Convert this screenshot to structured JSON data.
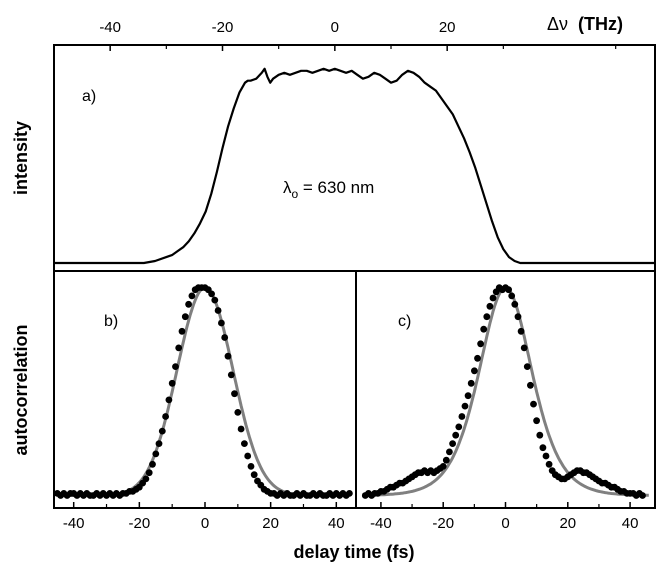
{
  "chart_data": [
    {
      "panel": "a)",
      "type": "line",
      "ylabel": "intensity",
      "x2label_symbol": "Δν",
      "x2label_unit": "(THz)",
      "x2_ticks": [
        "-40",
        "-20",
        "0",
        "20"
      ],
      "x2lim": [
        -50,
        57
      ],
      "annotation": {
        "prefix": "λ",
        "subscript": "o",
        "suffix": " = 630 nm"
      },
      "ylim": [
        0,
        1.08
      ],
      "x": [
        -50,
        -34,
        -32,
        -30,
        -29,
        -28,
        -27,
        -26,
        -25,
        -24,
        -23,
        -22,
        -21,
        -20,
        -19,
        -18,
        -17,
        -16,
        -15.5,
        -15,
        -14,
        -13,
        -12.5,
        -12,
        -11.5,
        -11,
        -10,
        -9,
        -8,
        -7,
        -6,
        -5,
        -4,
        -3,
        -2,
        -1,
        0,
        1,
        2,
        3,
        4,
        5,
        6,
        7,
        8,
        9,
        10,
        11,
        12,
        13,
        14,
        15,
        16,
        17,
        18,
        19,
        20,
        21,
        22,
        23,
        24,
        25,
        26,
        27,
        28,
        29,
        30,
        31,
        32,
        33,
        35,
        38,
        57
      ],
      "y": [
        0.01,
        0.01,
        0.02,
        0.04,
        0.05,
        0.07,
        0.09,
        0.12,
        0.16,
        0.21,
        0.27,
        0.36,
        0.47,
        0.59,
        0.7,
        0.79,
        0.87,
        0.92,
        0.93,
        0.93,
        0.94,
        0.97,
        0.99,
        0.95,
        0.92,
        0.94,
        0.96,
        0.97,
        0.96,
        0.97,
        0.98,
        0.98,
        0.97,
        0.98,
        0.99,
        0.98,
        0.99,
        0.98,
        0.97,
        0.98,
        0.96,
        0.94,
        0.95,
        0.97,
        0.96,
        0.94,
        0.92,
        0.93,
        0.96,
        0.98,
        0.97,
        0.95,
        0.92,
        0.9,
        0.88,
        0.84,
        0.8,
        0.76,
        0.7,
        0.64,
        0.57,
        0.49,
        0.4,
        0.31,
        0.22,
        0.14,
        0.08,
        0.04,
        0.02,
        0.01,
        0.01,
        0.01,
        0.01
      ]
    },
    {
      "panel": "b)",
      "type": "scatter",
      "ylabel": "autocorrelation",
      "xlim": [
        -46,
        46
      ],
      "xticks": [
        -40,
        -20,
        0,
        20,
        40
      ],
      "ylim": [
        -0.06,
        1.08
      ],
      "points": {
        "x": [
          -45,
          -44,
          -43,
          -42,
          -41,
          -40,
          -39,
          -38,
          -37,
          -36,
          -35,
          -34,
          -33,
          -32,
          -31,
          -30,
          -29,
          -28,
          -27,
          -26,
          -25,
          -24,
          -23,
          -22,
          -21,
          -20,
          -19,
          -18,
          -17,
          -16,
          -15,
          -14,
          -13,
          -12,
          -11,
          -10,
          -9,
          -8,
          -7,
          -6,
          -5,
          -4,
          -3,
          -2,
          -1,
          0,
          1,
          2,
          3,
          4,
          5,
          6,
          7,
          8,
          9,
          10,
          11,
          12,
          13,
          14,
          15,
          16,
          17,
          18,
          19,
          20,
          21,
          22,
          23,
          24,
          25,
          26,
          27,
          28,
          29,
          30,
          31,
          32,
          33,
          34,
          35,
          36,
          37,
          38,
          39,
          40,
          41,
          42,
          43,
          44
        ],
        "y": [
          0.01,
          0.0,
          0.01,
          0.0,
          0.01,
          0.01,
          0.0,
          0.01,
          0.0,
          0.01,
          0.0,
          0.0,
          0.01,
          0.0,
          0.01,
          0.0,
          0.01,
          0.0,
          0.01,
          0.0,
          0.01,
          0.01,
          0.02,
          0.02,
          0.03,
          0.04,
          0.06,
          0.08,
          0.11,
          0.15,
          0.2,
          0.25,
          0.31,
          0.38,
          0.46,
          0.54,
          0.62,
          0.71,
          0.79,
          0.86,
          0.92,
          0.96,
          0.99,
          1.0,
          1.0,
          1.0,
          0.99,
          0.97,
          0.94,
          0.89,
          0.83,
          0.76,
          0.67,
          0.58,
          0.49,
          0.4,
          0.32,
          0.25,
          0.19,
          0.14,
          0.1,
          0.07,
          0.05,
          0.03,
          0.02,
          0.01,
          0.01,
          0.0,
          0.01,
          0.0,
          0.01,
          0.0,
          0.0,
          0.01,
          0.0,
          0.01,
          0.0,
          0.0,
          0.01,
          0.0,
          0.01,
          0.0,
          0.0,
          0.01,
          0.0,
          0.01,
          0.0,
          0.01,
          0.0,
          0.01
        ]
      },
      "fit": {
        "type": "gaussian",
        "center": 0,
        "fwhm": 20,
        "amplitude": 1.0,
        "baseline": 0.0
      }
    },
    {
      "panel": "c)",
      "type": "scatter",
      "xlabel": "delay time (fs)",
      "xlim": [
        -48,
        48
      ],
      "xticks": [
        -40,
        -20,
        0,
        20,
        40
      ],
      "ylim": [
        -0.06,
        1.08
      ],
      "points": {
        "x": [
          -45,
          -44,
          -43,
          -42,
          -41,
          -40,
          -39,
          -38,
          -37,
          -36,
          -35,
          -34,
          -33,
          -32,
          -31,
          -30,
          -29,
          -28,
          -27,
          -26,
          -25,
          -24,
          -23,
          -22,
          -21,
          -20,
          -19,
          -18,
          -17,
          -16,
          -15,
          -14,
          -13,
          -12,
          -11,
          -10,
          -9,
          -8,
          -7,
          -6,
          -5,
          -4,
          -3,
          -2,
          -1,
          0,
          1,
          2,
          3,
          4,
          5,
          6,
          7,
          8,
          9,
          10,
          11,
          12,
          13,
          14,
          15,
          16,
          17,
          18,
          19,
          20,
          21,
          22,
          23,
          24,
          25,
          26,
          27,
          28,
          29,
          30,
          31,
          32,
          33,
          34,
          35,
          36,
          37,
          38,
          39,
          40,
          41,
          42,
          43,
          44
        ],
        "y": [
          0.0,
          0.01,
          0.0,
          0.01,
          0.01,
          0.02,
          0.02,
          0.03,
          0.04,
          0.04,
          0.05,
          0.06,
          0.06,
          0.07,
          0.08,
          0.09,
          0.1,
          0.11,
          0.11,
          0.12,
          0.11,
          0.12,
          0.11,
          0.12,
          0.13,
          0.14,
          0.17,
          0.21,
          0.25,
          0.29,
          0.33,
          0.38,
          0.43,
          0.48,
          0.54,
          0.6,
          0.66,
          0.73,
          0.8,
          0.86,
          0.91,
          0.95,
          0.98,
          1.0,
          0.99,
          1.0,
          0.99,
          0.96,
          0.92,
          0.86,
          0.79,
          0.71,
          0.62,
          0.53,
          0.44,
          0.36,
          0.29,
          0.23,
          0.19,
          0.15,
          0.12,
          0.1,
          0.09,
          0.08,
          0.08,
          0.09,
          0.1,
          0.11,
          0.12,
          0.12,
          0.11,
          0.11,
          0.1,
          0.09,
          0.08,
          0.07,
          0.06,
          0.06,
          0.05,
          0.04,
          0.04,
          0.03,
          0.02,
          0.02,
          0.01,
          0.01,
          0.01,
          0.0,
          0.01,
          0.0
        ]
      },
      "fit": {
        "type": "sech2",
        "center": 0,
        "fwhm": 20,
        "amplitude": 1.0,
        "baseline": 0.0
      }
    }
  ],
  "colors": {
    "data": "#000000",
    "fit": "#808080",
    "axes": "#000000"
  }
}
